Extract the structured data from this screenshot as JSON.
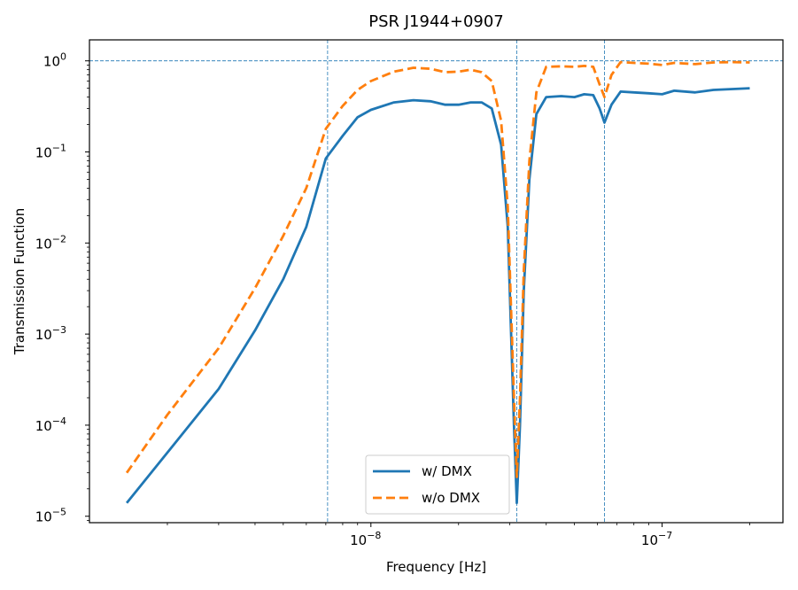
{
  "chart_data": {
    "type": "line",
    "title": "PSR J1944+0907",
    "xlabel": "Frequency [Hz]",
    "ylabel": "Transmission Function",
    "xscale": "log",
    "yscale": "log",
    "xlim": [
      1.08e-09,
      2.6e-07
    ],
    "ylim": [
      8.5e-06,
      1.7
    ],
    "x_ticks": [
      {
        "value": 1e-08,
        "base": "10",
        "exp": "−8"
      },
      {
        "value": 1e-07,
        "base": "10",
        "exp": "−7"
      }
    ],
    "y_ticks": [
      {
        "value": 1e-05,
        "base": "10",
        "exp": "−5"
      },
      {
        "value": 0.0001,
        "base": "10",
        "exp": "−4"
      },
      {
        "value": 0.001,
        "base": "10",
        "exp": "−3"
      },
      {
        "value": 0.01,
        "base": "10",
        "exp": "−2"
      },
      {
        "value": 0.1,
        "base": "10",
        "exp": "−1"
      },
      {
        "value": 1,
        "base": "10",
        "exp": "0"
      }
    ],
    "reference_lines": {
      "horizontal": [
        1.0
      ],
      "vertical": [
        7.1e-09,
        3.17e-08,
        6.34e-08
      ],
      "color": "#1f77b4",
      "style": "dashed"
    },
    "series": [
      {
        "name": "w/ DMX",
        "color": "#1f77b4",
        "style": "solid",
        "points": [
          [
            1.45e-09,
            1.4e-05
          ],
          [
            2e-09,
            5e-05
          ],
          [
            3e-09,
            0.00025
          ],
          [
            4e-09,
            0.0011
          ],
          [
            5e-09,
            0.004
          ],
          [
            6e-09,
            0.015
          ],
          [
            7e-09,
            0.085
          ],
          [
            8e-09,
            0.15
          ],
          [
            9e-09,
            0.24
          ],
          [
            1e-08,
            0.29
          ],
          [
            1.2e-08,
            0.35
          ],
          [
            1.4e-08,
            0.37
          ],
          [
            1.6e-08,
            0.36
          ],
          [
            1.8e-08,
            0.33
          ],
          [
            2e-08,
            0.33
          ],
          [
            2.2e-08,
            0.35
          ],
          [
            2.4e-08,
            0.35
          ],
          [
            2.6e-08,
            0.3
          ],
          [
            2.8e-08,
            0.12
          ],
          [
            2.95e-08,
            0.015
          ],
          [
            3.1e-08,
            0.0001
          ],
          [
            3.17e-08,
            1.4e-05
          ],
          [
            3.25e-08,
            0.0001
          ],
          [
            3.35e-08,
            0.003
          ],
          [
            3.5e-08,
            0.05
          ],
          [
            3.7e-08,
            0.26
          ],
          [
            4e-08,
            0.4
          ],
          [
            4.5e-08,
            0.41
          ],
          [
            5e-08,
            0.4
          ],
          [
            5.4e-08,
            0.43
          ],
          [
            5.8e-08,
            0.42
          ],
          [
            6.1e-08,
            0.3
          ],
          [
            6.34e-08,
            0.21
          ],
          [
            6.7e-08,
            0.33
          ],
          [
            7.2e-08,
            0.46
          ],
          [
            8e-08,
            0.45
          ],
          [
            9e-08,
            0.44
          ],
          [
            1e-07,
            0.43
          ],
          [
            1.1e-07,
            0.47
          ],
          [
            1.3e-07,
            0.45
          ],
          [
            1.5e-07,
            0.48
          ],
          [
            1.75e-07,
            0.49
          ],
          [
            2e-07,
            0.5
          ]
        ]
      },
      {
        "name": "w/o DMX",
        "color": "#ff7f0e",
        "style": "dashed",
        "points": [
          [
            1.45e-09,
            3e-05
          ],
          [
            2e-09,
            0.00013
          ],
          [
            3e-09,
            0.0007
          ],
          [
            4e-09,
            0.0032
          ],
          [
            5e-09,
            0.012
          ],
          [
            6e-09,
            0.04
          ],
          [
            7e-09,
            0.18
          ],
          [
            8e-09,
            0.32
          ],
          [
            9e-09,
            0.48
          ],
          [
            1e-08,
            0.6
          ],
          [
            1.2e-08,
            0.76
          ],
          [
            1.4e-08,
            0.84
          ],
          [
            1.6e-08,
            0.82
          ],
          [
            1.8e-08,
            0.75
          ],
          [
            2e-08,
            0.76
          ],
          [
            2.2e-08,
            0.8
          ],
          [
            2.4e-08,
            0.75
          ],
          [
            2.6e-08,
            0.6
          ],
          [
            2.8e-08,
            0.22
          ],
          [
            2.95e-08,
            0.025
          ],
          [
            3.1e-08,
            0.0002
          ],
          [
            3.17e-08,
            2.7e-05
          ],
          [
            3.25e-08,
            0.0002
          ],
          [
            3.35e-08,
            0.005
          ],
          [
            3.5e-08,
            0.08
          ],
          [
            3.7e-08,
            0.45
          ],
          [
            4e-08,
            0.86
          ],
          [
            4.5e-08,
            0.87
          ],
          [
            5e-08,
            0.86
          ],
          [
            5.4e-08,
            0.88
          ],
          [
            5.8e-08,
            0.86
          ],
          [
            6.1e-08,
            0.55
          ],
          [
            6.34e-08,
            0.4
          ],
          [
            6.7e-08,
            0.7
          ],
          [
            7.2e-08,
            0.97
          ],
          [
            8e-08,
            0.95
          ],
          [
            9e-08,
            0.93
          ],
          [
            1e-07,
            0.9
          ],
          [
            1.1e-07,
            0.95
          ],
          [
            1.3e-07,
            0.92
          ],
          [
            1.5e-07,
            0.96
          ],
          [
            1.75e-07,
            0.97
          ],
          [
            2e-07,
            0.96
          ]
        ]
      }
    ],
    "legend": {
      "position": "lower-center"
    },
    "grid": false
  }
}
